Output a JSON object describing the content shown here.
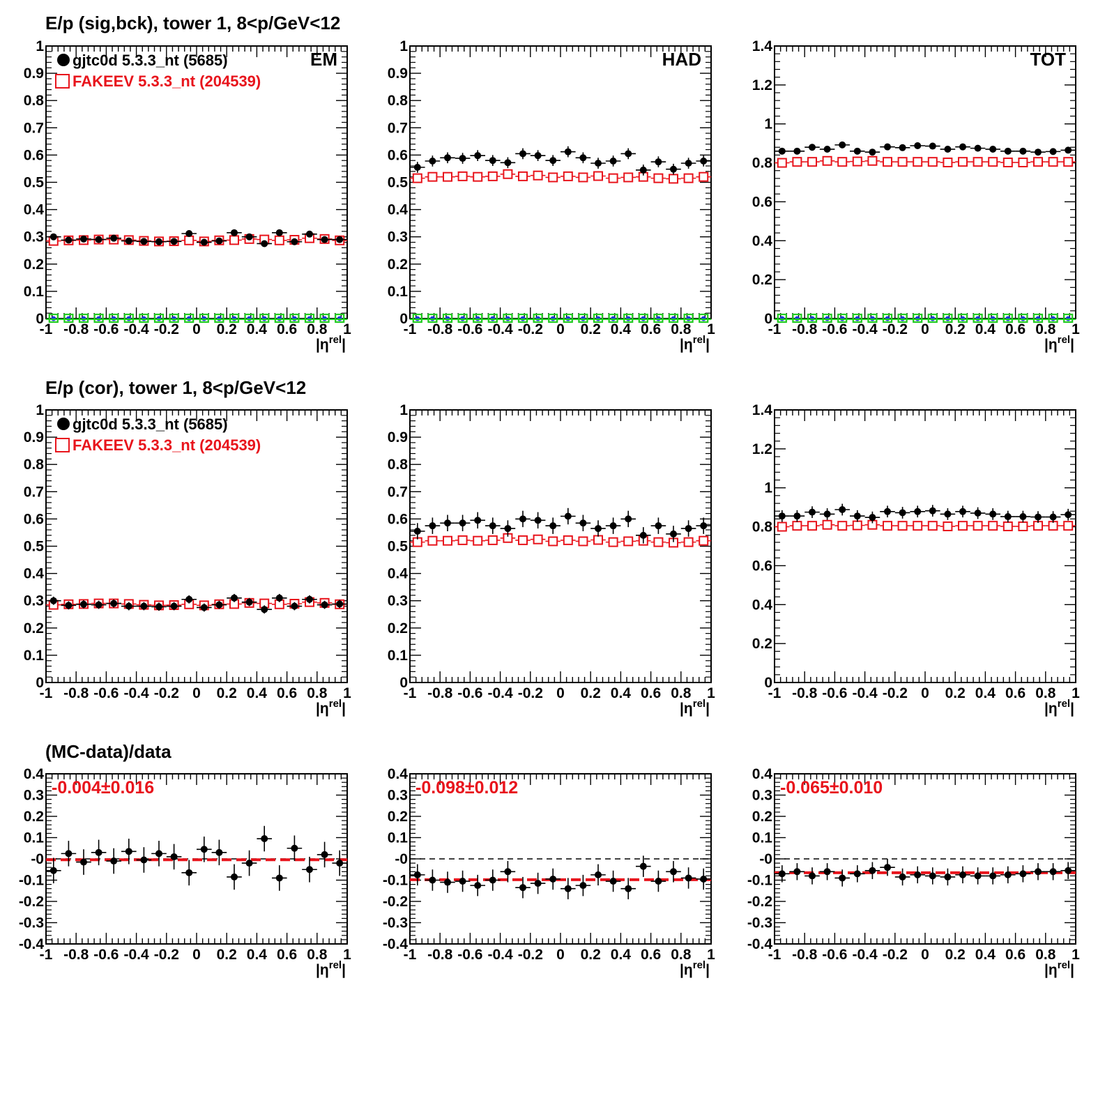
{
  "rows": [
    {
      "title": "E/p (sig,bck), tower 1,  8<p/GeV<12"
    },
    {
      "title": "E/p (cor), tower 1,  8<p/GeV<12"
    },
    {
      "title": "(MC-data)/data"
    }
  ],
  "legend": {
    "data_label": "gjtc0d 5.3.3_nt (5685)",
    "mc_label": "FAKEEV 5.3.3_nt (204539)"
  },
  "colors": {
    "data": "#000000",
    "mc": "#e8141c",
    "bck_green": "#22cc22",
    "bck_blue": "#1a3bd6",
    "ratio_fit": "#e8141c"
  },
  "axis_title": {
    "base": "|η",
    "sup": "rel",
    "close": "|"
  },
  "x_tick_labels": [
    "-1",
    "-0.8",
    "-0.6",
    "-0.4",
    "-0.2",
    "0",
    "0.2",
    "0.4",
    "0.6",
    "0.8",
    "1"
  ],
  "chart_data": [
    {
      "type": "scatter",
      "row": 0,
      "col": 0,
      "label": "EM",
      "xlim": [
        -1,
        1
      ],
      "ylim": [
        0,
        1
      ],
      "show_legend": true,
      "show_background": true,
      "y_ticks": [
        0,
        0.1,
        0.2,
        0.3,
        0.4,
        0.5,
        0.6,
        0.7,
        0.8,
        0.9,
        1
      ],
      "y_tick_labels": [
        "0",
        "0.1",
        "0.2",
        "0.3",
        "0.4",
        "0.5",
        "0.6",
        "0.7",
        "0.8",
        "0.9",
        "1"
      ],
      "series": [
        {
          "name": "gjtc0d 5.3.3_nt (5685)",
          "marker": "filled-circle",
          "y": [
            0.3,
            0.288,
            0.292,
            0.29,
            0.295,
            0.285,
            0.283,
            0.282,
            0.283,
            0.312,
            0.28,
            0.285,
            0.315,
            0.3,
            0.275,
            0.315,
            0.282,
            0.31,
            0.29,
            0.29
          ],
          "yerr": [
            0.01,
            0.01,
            0.01,
            0.01,
            0.01,
            0.01,
            0.01,
            0.01,
            0.01,
            0.01,
            0.01,
            0.01,
            0.01,
            0.01,
            0.01,
            0.01,
            0.01,
            0.01,
            0.01,
            0.01
          ]
        },
        {
          "name": "FAKEEV 5.3.3_nt (204539)",
          "marker": "open-square",
          "y": [
            0.285,
            0.287,
            0.288,
            0.29,
            0.29,
            0.288,
            0.285,
            0.283,
            0.284,
            0.287,
            0.283,
            0.287,
            0.288,
            0.292,
            0.29,
            0.287,
            0.289,
            0.295,
            0.292,
            0.287
          ]
        }
      ]
    },
    {
      "type": "scatter",
      "row": 0,
      "col": 1,
      "label": "HAD",
      "xlim": [
        -1,
        1
      ],
      "ylim": [
        0,
        1
      ],
      "show_legend": false,
      "show_background": true,
      "y_ticks": [
        0,
        0.1,
        0.2,
        0.3,
        0.4,
        0.5,
        0.6,
        0.7,
        0.8,
        0.9,
        1
      ],
      "y_tick_labels": [
        "0",
        "0.1",
        "0.2",
        "0.3",
        "0.4",
        "0.5",
        "0.6",
        "0.7",
        "0.8",
        "0.9",
        "1"
      ],
      "series": [
        {
          "name": "gjtc0d 5.3.3_nt (5685)",
          "marker": "filled-circle",
          "y": [
            0.555,
            0.578,
            0.59,
            0.588,
            0.598,
            0.58,
            0.572,
            0.605,
            0.598,
            0.58,
            0.612,
            0.59,
            0.57,
            0.578,
            0.605,
            0.545,
            0.575,
            0.548,
            0.57,
            0.578
          ],
          "yerr": [
            0.02,
            0.02,
            0.02,
            0.02,
            0.02,
            0.02,
            0.02,
            0.02,
            0.02,
            0.02,
            0.02,
            0.02,
            0.02,
            0.02,
            0.02,
            0.02,
            0.02,
            0.02,
            0.02,
            0.02
          ]
        },
        {
          "name": "FAKEEV 5.3.3_nt (204539)",
          "marker": "open-square",
          "y": [
            0.515,
            0.52,
            0.52,
            0.522,
            0.52,
            0.522,
            0.53,
            0.522,
            0.525,
            0.518,
            0.522,
            0.518,
            0.523,
            0.515,
            0.518,
            0.52,
            0.515,
            0.513,
            0.515,
            0.52
          ]
        }
      ]
    },
    {
      "type": "scatter",
      "row": 0,
      "col": 2,
      "label": "TOT",
      "xlim": [
        -1,
        1
      ],
      "ylim": [
        0,
        1.4
      ],
      "show_legend": false,
      "show_background": true,
      "y_ticks": [
        0,
        0.2,
        0.4,
        0.6,
        0.8,
        1,
        1.2,
        1.4
      ],
      "y_tick_labels": [
        "0",
        "0.2",
        "0.4",
        "0.6",
        "0.8",
        "1",
        "1.2",
        "1.4"
      ],
      "series": [
        {
          "name": "gjtc0d 5.3.3_nt (5685)",
          "marker": "filled-circle",
          "y": [
            0.86,
            0.86,
            0.88,
            0.87,
            0.892,
            0.86,
            0.855,
            0.882,
            0.878,
            0.888,
            0.886,
            0.87,
            0.882,
            0.875,
            0.87,
            0.86,
            0.86,
            0.855,
            0.858,
            0.865
          ],
          "yerr": [
            0.015,
            0.015,
            0.015,
            0.015,
            0.015,
            0.015,
            0.015,
            0.015,
            0.015,
            0.015,
            0.015,
            0.015,
            0.015,
            0.015,
            0.015,
            0.015,
            0.015,
            0.015,
            0.015,
            0.015
          ]
        },
        {
          "name": "FAKEEV 5.3.3_nt (204539)",
          "marker": "open-square",
          "y": [
            0.8,
            0.805,
            0.805,
            0.81,
            0.805,
            0.807,
            0.81,
            0.805,
            0.805,
            0.805,
            0.805,
            0.802,
            0.805,
            0.805,
            0.805,
            0.802,
            0.802,
            0.805,
            0.805,
            0.805
          ]
        }
      ]
    },
    {
      "type": "scatter",
      "row": 1,
      "col": 0,
      "xlim": [
        -1,
        1
      ],
      "ylim": [
        0,
        1
      ],
      "show_legend": true,
      "show_background": false,
      "y_ticks": [
        0,
        0.1,
        0.2,
        0.3,
        0.4,
        0.5,
        0.6,
        0.7,
        0.8,
        0.9,
        1
      ],
      "y_tick_labels": [
        "0",
        "0.1",
        "0.2",
        "0.3",
        "0.4",
        "0.5",
        "0.6",
        "0.7",
        "0.8",
        "0.9",
        "1"
      ],
      "series": [
        {
          "name": "gjtc0d 5.3.3_nt (5685)",
          "marker": "filled-circle",
          "y": [
            0.3,
            0.283,
            0.287,
            0.285,
            0.29,
            0.28,
            0.28,
            0.278,
            0.28,
            0.305,
            0.275,
            0.285,
            0.31,
            0.295,
            0.268,
            0.31,
            0.28,
            0.305,
            0.285,
            0.288
          ],
          "yerr": [
            0.015,
            0.015,
            0.015,
            0.015,
            0.015,
            0.015,
            0.015,
            0.015,
            0.015,
            0.015,
            0.015,
            0.015,
            0.015,
            0.015,
            0.015,
            0.015,
            0.015,
            0.015,
            0.015,
            0.015
          ]
        },
        {
          "name": "FAKEEV 5.3.3_nt (204539)",
          "marker": "open-square",
          "y": [
            0.285,
            0.287,
            0.288,
            0.29,
            0.29,
            0.288,
            0.285,
            0.283,
            0.284,
            0.287,
            0.283,
            0.287,
            0.288,
            0.292,
            0.29,
            0.287,
            0.289,
            0.295,
            0.292,
            0.287
          ]
        }
      ]
    },
    {
      "type": "scatter",
      "row": 1,
      "col": 1,
      "xlim": [
        -1,
        1
      ],
      "ylim": [
        0,
        1
      ],
      "show_legend": false,
      "show_background": false,
      "y_ticks": [
        0,
        0.1,
        0.2,
        0.3,
        0.4,
        0.5,
        0.6,
        0.7,
        0.8,
        0.9,
        1
      ],
      "y_tick_labels": [
        "0",
        "0.1",
        "0.2",
        "0.3",
        "0.4",
        "0.5",
        "0.6",
        "0.7",
        "0.8",
        "0.9",
        "1"
      ],
      "series": [
        {
          "name": "gjtc0d 5.3.3_nt (5685)",
          "marker": "filled-circle",
          "y": [
            0.555,
            0.575,
            0.585,
            0.585,
            0.595,
            0.575,
            0.565,
            0.6,
            0.595,
            0.575,
            0.61,
            0.585,
            0.565,
            0.575,
            0.6,
            0.54,
            0.575,
            0.545,
            0.565,
            0.575
          ],
          "yerr": [
            0.03,
            0.03,
            0.03,
            0.03,
            0.03,
            0.03,
            0.03,
            0.03,
            0.03,
            0.03,
            0.03,
            0.03,
            0.03,
            0.03,
            0.03,
            0.03,
            0.03,
            0.03,
            0.03,
            0.03
          ]
        },
        {
          "name": "FAKEEV 5.3.3_nt (204539)",
          "marker": "open-square",
          "y": [
            0.515,
            0.52,
            0.52,
            0.522,
            0.52,
            0.522,
            0.53,
            0.522,
            0.525,
            0.518,
            0.522,
            0.518,
            0.523,
            0.515,
            0.518,
            0.52,
            0.515,
            0.513,
            0.515,
            0.52
          ]
        }
      ]
    },
    {
      "type": "scatter",
      "row": 1,
      "col": 2,
      "xlim": [
        -1,
        1
      ],
      "ylim": [
        0,
        1.4
      ],
      "show_legend": false,
      "show_background": false,
      "y_ticks": [
        0,
        0.2,
        0.4,
        0.6,
        0.8,
        1,
        1.2,
        1.4
      ],
      "y_tick_labels": [
        "0",
        "0.2",
        "0.4",
        "0.6",
        "0.8",
        "1",
        "1.2",
        "1.4"
      ],
      "series": [
        {
          "name": "gjtc0d 5.3.3_nt (5685)",
          "marker": "filled-circle",
          "y": [
            0.855,
            0.855,
            0.875,
            0.865,
            0.888,
            0.855,
            0.848,
            0.878,
            0.872,
            0.878,
            0.882,
            0.865,
            0.878,
            0.87,
            0.865,
            0.852,
            0.852,
            0.85,
            0.85,
            0.862
          ],
          "yerr": [
            0.03,
            0.03,
            0.03,
            0.03,
            0.03,
            0.03,
            0.03,
            0.03,
            0.03,
            0.03,
            0.03,
            0.03,
            0.03,
            0.03,
            0.03,
            0.03,
            0.03,
            0.03,
            0.03,
            0.03
          ]
        },
        {
          "name": "FAKEEV 5.3.3_nt (204539)",
          "marker": "open-square",
          "y": [
            0.8,
            0.805,
            0.805,
            0.81,
            0.805,
            0.807,
            0.81,
            0.805,
            0.805,
            0.805,
            0.805,
            0.802,
            0.805,
            0.805,
            0.805,
            0.802,
            0.802,
            0.805,
            0.805,
            0.805
          ]
        }
      ]
    },
    {
      "type": "scatter",
      "row": 2,
      "col": 0,
      "ratio": true,
      "xlim": [
        -1,
        1
      ],
      "ylim": [
        -0.4,
        0.4
      ],
      "fit_text": "-0.004±0.016",
      "fit": -0.004,
      "y_ticks": [
        -0.4,
        -0.3,
        -0.2,
        -0.1,
        0,
        0.1,
        0.2,
        0.3,
        0.4
      ],
      "y_tick_labels": [
        "-0.4",
        "-0.3",
        "-0.2",
        "-0.1",
        "-0",
        "0.1",
        "0.2",
        "0.3",
        "0.4"
      ],
      "series": [
        {
          "name": "(MC-data)/data",
          "marker": "filled-circle",
          "y": [
            -0.055,
            0.025,
            -0.015,
            0.03,
            -0.01,
            0.035,
            -0.005,
            0.025,
            0.01,
            -0.065,
            0.045,
            0.03,
            -0.085,
            -0.02,
            0.095,
            -0.09,
            0.05,
            -0.05,
            0.02,
            -0.02
          ],
          "yerr": [
            0.06,
            0.06,
            0.06,
            0.06,
            0.06,
            0.06,
            0.06,
            0.06,
            0.06,
            0.06,
            0.06,
            0.06,
            0.06,
            0.06,
            0.06,
            0.06,
            0.06,
            0.06,
            0.06,
            0.06
          ]
        }
      ]
    },
    {
      "type": "scatter",
      "row": 2,
      "col": 1,
      "ratio": true,
      "xlim": [
        -1,
        1
      ],
      "ylim": [
        -0.4,
        0.4
      ],
      "fit_text": "-0.098±0.012",
      "fit": -0.098,
      "y_ticks": [
        -0.4,
        -0.3,
        -0.2,
        -0.1,
        0,
        0.1,
        0.2,
        0.3,
        0.4
      ],
      "y_tick_labels": [
        "-0.4",
        "-0.3",
        "-0.2",
        "-0.1",
        "-0",
        "0.1",
        "0.2",
        "0.3",
        "0.4"
      ],
      "series": [
        {
          "name": "(MC-data)/data",
          "marker": "filled-circle",
          "y": [
            -0.075,
            -0.1,
            -0.11,
            -0.105,
            -0.125,
            -0.1,
            -0.06,
            -0.135,
            -0.115,
            -0.095,
            -0.14,
            -0.125,
            -0.075,
            -0.105,
            -0.14,
            -0.035,
            -0.105,
            -0.06,
            -0.09,
            -0.095
          ],
          "yerr": [
            0.05,
            0.05,
            0.05,
            0.05,
            0.05,
            0.05,
            0.05,
            0.05,
            0.05,
            0.05,
            0.05,
            0.05,
            0.05,
            0.05,
            0.05,
            0.05,
            0.05,
            0.05,
            0.05,
            0.05
          ]
        }
      ]
    },
    {
      "type": "scatter",
      "row": 2,
      "col": 2,
      "ratio": true,
      "xlim": [
        -1,
        1
      ],
      "ylim": [
        -0.4,
        0.4
      ],
      "fit_text": "-0.065±0.010",
      "fit": -0.065,
      "y_ticks": [
        -0.4,
        -0.3,
        -0.2,
        -0.1,
        0,
        0.1,
        0.2,
        0.3,
        0.4
      ],
      "y_tick_labels": [
        "-0.4",
        "-0.3",
        "-0.2",
        "-0.1",
        "-0",
        "0.1",
        "0.2",
        "0.3",
        "0.4"
      ],
      "series": [
        {
          "name": "(MC-data)/data",
          "marker": "filled-circle",
          "y": [
            -0.07,
            -0.06,
            -0.08,
            -0.06,
            -0.09,
            -0.07,
            -0.055,
            -0.04,
            -0.085,
            -0.075,
            -0.08,
            -0.085,
            -0.075,
            -0.08,
            -0.08,
            -0.075,
            -0.07,
            -0.06,
            -0.06,
            -0.055
          ],
          "yerr": [
            0.04,
            0.04,
            0.04,
            0.04,
            0.04,
            0.04,
            0.04,
            0.04,
            0.04,
            0.04,
            0.04,
            0.04,
            0.04,
            0.04,
            0.04,
            0.04,
            0.04,
            0.04,
            0.04,
            0.04
          ]
        }
      ]
    }
  ]
}
